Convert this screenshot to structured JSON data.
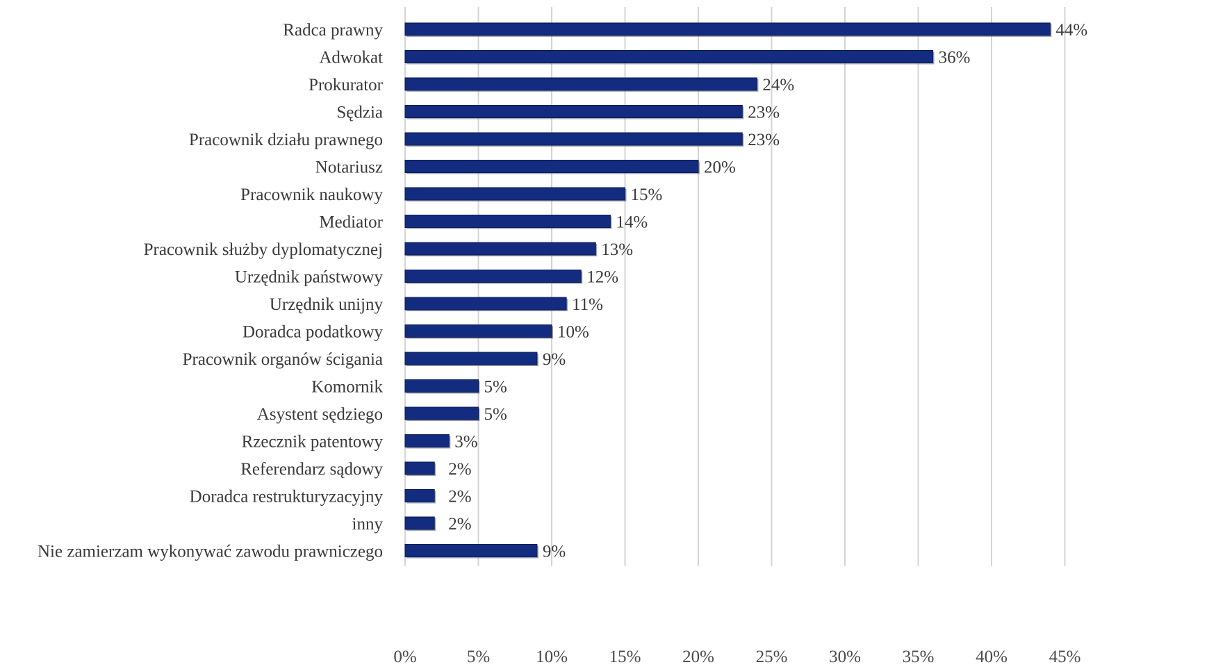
{
  "chart_data": {
    "type": "bar",
    "orientation": "horizontal",
    "categories": [
      "Radca prawny",
      "Adwokat",
      "Prokurator",
      "Sędzia",
      "Pracownik działu prawnego",
      "Notariusz",
      "Pracownik naukowy",
      "Mediator",
      "Pracownik służby dyplomatycznej",
      "Urzędnik państwowy",
      "Urzędnik unijny",
      "Doradca podatkowy",
      "Pracownik organów ścigania",
      "Komornik",
      "Asystent sędziego",
      "Rzecznik patentowy",
      "Referendarz sądowy",
      "Doradca restrukturyzacyjny",
      "inny",
      "Nie zamierzam wykonywać zawodu prawniczego"
    ],
    "values": [
      44,
      36,
      24,
      23,
      23,
      20,
      15,
      14,
      13,
      12,
      11,
      10,
      9,
      5,
      5,
      3,
      2,
      2,
      2,
      9
    ],
    "value_labels": [
      "44%",
      "36%",
      "24%",
      "23%",
      "23%",
      "20%",
      "15%",
      "14%",
      "13%",
      "12%",
      "11%",
      "10%",
      "9%",
      "5%",
      "5%",
      "3%",
      "2%",
      "2%",
      "2%",
      "9%"
    ],
    "xlim": [
      0,
      45
    ],
    "x_ticks": [
      "0%",
      "5%",
      "10%",
      "15%",
      "20%",
      "25%",
      "30%",
      "35%",
      "40%",
      "45%"
    ],
    "grid": true,
    "legend": "none",
    "bar_color": "#132c7f",
    "bar_edge_color": "#0b1d5a"
  }
}
